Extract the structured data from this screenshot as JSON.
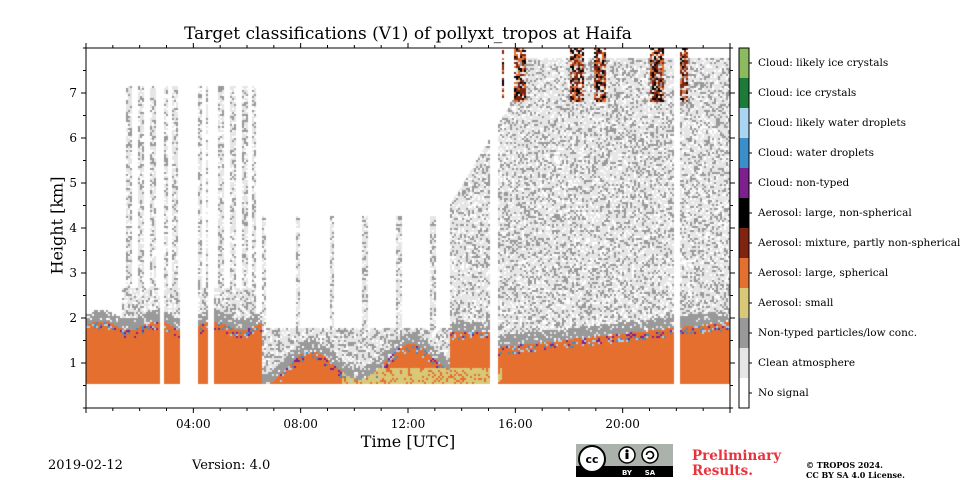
{
  "chart_data": {
    "type": "heatmap",
    "title": "Target classifications (V1) of pollyxt_tropos at Haifa",
    "xlabel": "Time [UTC]",
    "ylabel": "Height [km]",
    "x_ticks": [
      "04:00",
      "08:00",
      "12:00",
      "16:00",
      "20:00"
    ],
    "x_tick_hours": [
      4,
      8,
      12,
      16,
      20
    ],
    "x_range_hours": [
      0,
      24
    ],
    "y_ticks": [
      "1",
      "2",
      "3",
      "4",
      "5",
      "6",
      "7"
    ],
    "y_range_km": [
      0,
      8
    ],
    "classes": [
      {
        "label": "Cloud: likely ice crystals",
        "color": "#8cbb5f"
      },
      {
        "label": "Cloud: ice crystals",
        "color": "#1d7b3a"
      },
      {
        "label": "Cloud: likely water droplets",
        "color": "#aad4f2"
      },
      {
        "label": "Cloud: water droplets",
        "color": "#3a8fcb"
      },
      {
        "label": "Cloud: non-typed",
        "color": "#7e1f8e"
      },
      {
        "label": "Aerosol: large, non-spherical",
        "color": "#000000"
      },
      {
        "label": "Aerosol: mixture, partly non-spherical",
        "color": "#7e2410"
      },
      {
        "label": "Aerosol: large, spherical",
        "color": "#e56f2f"
      },
      {
        "label": "Aerosol: small",
        "color": "#d8c878"
      },
      {
        "label": "Non-typed particles/low conc.",
        "color": "#999999"
      },
      {
        "label": "Clean atmosphere",
        "color": "#e6e6e6"
      },
      {
        "label": "No signal",
        "color": "#ffffff"
      }
    ]
  },
  "footer": {
    "date": "2019-02-12",
    "version": "Version: 4.0",
    "preliminary_line1": "Preliminary",
    "preliminary_line2": "Results.",
    "copyright_line1": "© TROPOS 2024.",
    "copyright_line2": "CC BY SA 4.0 License.",
    "license_badge": "cc",
    "license_terms": [
      "BY",
      "SA"
    ]
  }
}
